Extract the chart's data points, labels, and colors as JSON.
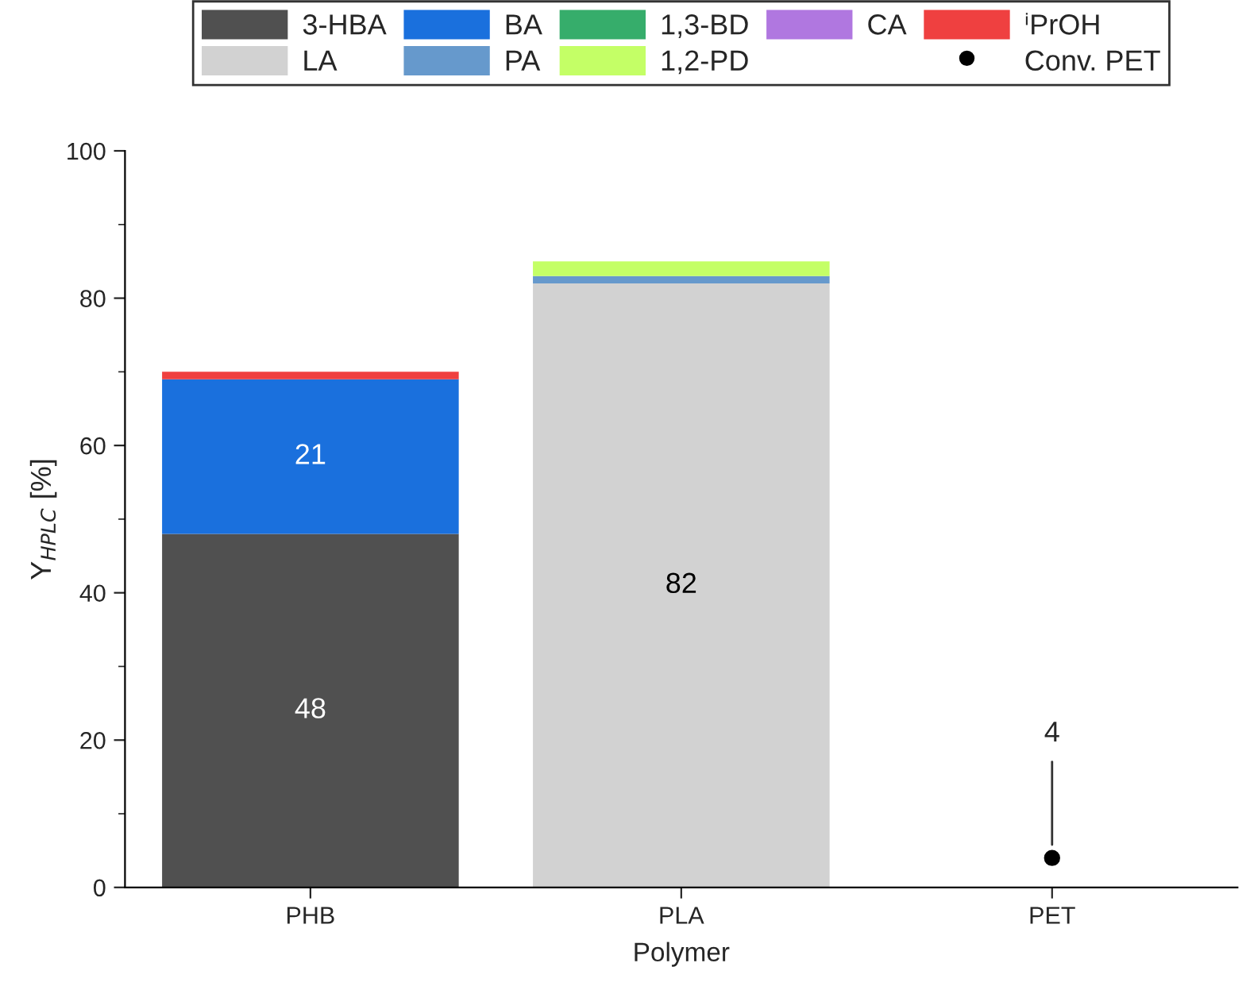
{
  "chart_data": {
    "type": "bar",
    "stacked": true,
    "xlabel": "Polymer",
    "ylabel": "Y$_{HPLC}$ [%]",
    "categories": [
      "PHB",
      "PLA",
      "PET"
    ],
    "ylim": [
      0,
      100
    ],
    "yticks": [
      0,
      20,
      40,
      60,
      80,
      100
    ],
    "grid": false,
    "legend": "top",
    "series": [
      {
        "name": "3-HBA",
        "color": "#505050",
        "values": [
          48,
          null,
          null
        ],
        "value_labels": [
          "48",
          null,
          null
        ]
      },
      {
        "name": "LA",
        "color": "#d2d2d2",
        "values": [
          null,
          82,
          null
        ],
        "value_labels": [
          null,
          "82",
          null
        ]
      },
      {
        "name": "BA",
        "color": "#1a70dd",
        "values": [
          21,
          null,
          null
        ],
        "value_labels": [
          "21",
          null,
          null
        ]
      },
      {
        "name": "PA",
        "color": "#6699cc",
        "values": [
          null,
          1,
          null
        ]
      },
      {
        "name": "1,3-BD",
        "color": "#36ad6b",
        "values": [
          null,
          null,
          null
        ]
      },
      {
        "name": "1,2-PD",
        "color": "#c4ff66",
        "values": [
          null,
          2,
          null
        ]
      },
      {
        "name": "CA",
        "color": "#b077e0",
        "values": [
          null,
          null,
          null
        ]
      },
      {
        "name": "ⁱPrOH",
        "color": "#ef4040",
        "values": [
          1,
          null,
          null
        ]
      },
      {
        "name": "Conv. PET",
        "type": "scatter",
        "marker": "circle",
        "color": "#000000",
        "values": [
          null,
          null,
          4
        ],
        "value_labels": [
          null,
          null,
          "4"
        ]
      }
    ]
  }
}
